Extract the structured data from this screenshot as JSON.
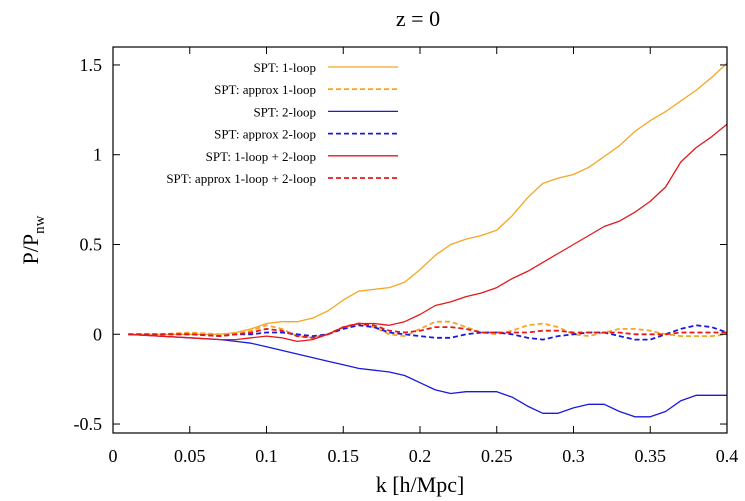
{
  "chart_data": {
    "type": "line",
    "title": "z = 0",
    "xlabel": "k [h/Mpc]",
    "ylabel_main": "P/P",
    "ylabel_sub": "nw",
    "xlim": [
      0,
      0.4
    ],
    "ylim": [
      -0.55,
      1.6
    ],
    "xticks": [
      0,
      0.05,
      0.1,
      0.15,
      0.2,
      0.25,
      0.3,
      0.35,
      0.4
    ],
    "xtick_labels": [
      "0",
      "0.05",
      "0.1",
      "0.15",
      "0.2",
      "0.25",
      "0.3",
      "0.35",
      "0.4"
    ],
    "yticks": [
      -0.5,
      0,
      0.5,
      1,
      1.5
    ],
    "ytick_labels": [
      "-0.5",
      "0",
      "0.5",
      "1",
      "1.5"
    ],
    "grid": false,
    "legend_position": "top-left",
    "series": [
      {
        "name": "SPT: 1-loop",
        "color": "#f5a623",
        "dash": "solid",
        "x": [
          0.01,
          0.03,
          0.05,
          0.07,
          0.08,
          0.09,
          0.1,
          0.11,
          0.12,
          0.13,
          0.14,
          0.15,
          0.16,
          0.17,
          0.18,
          0.19,
          0.2,
          0.21,
          0.22,
          0.23,
          0.24,
          0.25,
          0.26,
          0.27,
          0.28,
          0.29,
          0.3,
          0.31,
          0.32,
          0.33,
          0.34,
          0.35,
          0.36,
          0.37,
          0.38,
          0.39,
          0.4
        ],
        "y": [
          0.0,
          0.0,
          0.0,
          0.0,
          0.01,
          0.03,
          0.06,
          0.07,
          0.07,
          0.09,
          0.13,
          0.19,
          0.24,
          0.25,
          0.26,
          0.29,
          0.36,
          0.44,
          0.5,
          0.53,
          0.55,
          0.58,
          0.66,
          0.76,
          0.84,
          0.87,
          0.89,
          0.93,
          0.99,
          1.05,
          1.13,
          1.19,
          1.24,
          1.3,
          1.36,
          1.43,
          1.51
        ]
      },
      {
        "name": "SPT: approx 1-loop",
        "color": "#f5a623",
        "dash": "dashed",
        "x": [
          0.01,
          0.03,
          0.05,
          0.07,
          0.08,
          0.09,
          0.1,
          0.11,
          0.12,
          0.13,
          0.14,
          0.15,
          0.16,
          0.17,
          0.18,
          0.19,
          0.2,
          0.21,
          0.22,
          0.23,
          0.24,
          0.25,
          0.26,
          0.27,
          0.28,
          0.29,
          0.3,
          0.31,
          0.32,
          0.33,
          0.34,
          0.35,
          0.36,
          0.37,
          0.38,
          0.39,
          0.4
        ],
        "y": [
          0.0,
          0.0,
          0.01,
          0.0,
          0.0,
          0.02,
          0.05,
          0.03,
          -0.01,
          -0.02,
          0.0,
          0.04,
          0.06,
          0.04,
          0.0,
          -0.01,
          0.03,
          0.07,
          0.07,
          0.04,
          0.01,
          0.0,
          0.02,
          0.05,
          0.06,
          0.04,
          0.0,
          -0.01,
          0.01,
          0.03,
          0.03,
          0.02,
          0.0,
          -0.01,
          -0.01,
          -0.01,
          0.0
        ]
      },
      {
        "name": "SPT: 2-loop",
        "color": "#1a1adc",
        "dash": "solid",
        "x": [
          0.01,
          0.03,
          0.05,
          0.07,
          0.08,
          0.09,
          0.1,
          0.11,
          0.12,
          0.13,
          0.14,
          0.15,
          0.16,
          0.17,
          0.18,
          0.19,
          0.2,
          0.21,
          0.22,
          0.23,
          0.24,
          0.25,
          0.26,
          0.27,
          0.28,
          0.29,
          0.3,
          0.31,
          0.32,
          0.33,
          0.34,
          0.35,
          0.36,
          0.37,
          0.38,
          0.39,
          0.4
        ],
        "y": [
          0.0,
          -0.01,
          -0.02,
          -0.03,
          -0.04,
          -0.05,
          -0.07,
          -0.09,
          -0.11,
          -0.13,
          -0.15,
          -0.17,
          -0.19,
          -0.2,
          -0.21,
          -0.23,
          -0.27,
          -0.31,
          -0.33,
          -0.32,
          -0.32,
          -0.32,
          -0.35,
          -0.4,
          -0.44,
          -0.44,
          -0.41,
          -0.39,
          -0.39,
          -0.43,
          -0.46,
          -0.46,
          -0.43,
          -0.37,
          -0.34,
          -0.34,
          -0.34
        ]
      },
      {
        "name": "SPT: approx 2-loop",
        "color": "#1a1adc",
        "dash": "dashed",
        "x": [
          0.01,
          0.03,
          0.05,
          0.07,
          0.08,
          0.09,
          0.1,
          0.11,
          0.12,
          0.13,
          0.14,
          0.15,
          0.16,
          0.17,
          0.18,
          0.19,
          0.2,
          0.21,
          0.22,
          0.23,
          0.24,
          0.25,
          0.26,
          0.27,
          0.28,
          0.29,
          0.3,
          0.31,
          0.32,
          0.33,
          0.34,
          0.35,
          0.36,
          0.37,
          0.38,
          0.39,
          0.4
        ],
        "y": [
          0.0,
          0.0,
          0.0,
          -0.01,
          0.0,
          0.0,
          0.01,
          0.01,
          0.0,
          -0.01,
          0.0,
          0.03,
          0.05,
          0.04,
          0.01,
          0.0,
          -0.01,
          -0.02,
          -0.02,
          0.0,
          0.01,
          0.01,
          0.0,
          -0.02,
          -0.03,
          -0.01,
          0.0,
          0.01,
          0.01,
          -0.01,
          -0.03,
          -0.03,
          0.0,
          0.03,
          0.05,
          0.04,
          0.01
        ]
      },
      {
        "name": "SPT: 1-loop + 2-loop",
        "color": "#e3191c",
        "dash": "solid",
        "x": [
          0.01,
          0.03,
          0.05,
          0.07,
          0.08,
          0.09,
          0.1,
          0.11,
          0.12,
          0.13,
          0.14,
          0.15,
          0.16,
          0.17,
          0.18,
          0.19,
          0.2,
          0.21,
          0.22,
          0.23,
          0.24,
          0.25,
          0.26,
          0.27,
          0.28,
          0.29,
          0.3,
          0.31,
          0.32,
          0.33,
          0.34,
          0.35,
          0.36,
          0.37,
          0.38,
          0.39,
          0.4
        ],
        "y": [
          0.0,
          -0.01,
          -0.02,
          -0.03,
          -0.03,
          -0.02,
          -0.01,
          -0.02,
          -0.04,
          -0.03,
          0.0,
          0.04,
          0.06,
          0.06,
          0.05,
          0.07,
          0.11,
          0.16,
          0.18,
          0.21,
          0.23,
          0.26,
          0.31,
          0.35,
          0.4,
          0.45,
          0.5,
          0.55,
          0.6,
          0.63,
          0.68,
          0.74,
          0.82,
          0.96,
          1.04,
          1.1,
          1.17
        ]
      },
      {
        "name": "SPT: approx 1-loop + 2-loop",
        "color": "#e3191c",
        "dash": "dashed",
        "x": [
          0.01,
          0.03,
          0.05,
          0.07,
          0.08,
          0.09,
          0.1,
          0.11,
          0.12,
          0.13,
          0.14,
          0.15,
          0.16,
          0.17,
          0.18,
          0.19,
          0.2,
          0.21,
          0.22,
          0.23,
          0.24,
          0.25,
          0.26,
          0.27,
          0.28,
          0.29,
          0.3,
          0.31,
          0.32,
          0.33,
          0.34,
          0.35,
          0.36,
          0.37,
          0.38,
          0.39,
          0.4
        ],
        "y": [
          0.0,
          0.0,
          0.0,
          -0.01,
          0.0,
          0.01,
          0.03,
          0.02,
          -0.01,
          -0.02,
          0.0,
          0.04,
          0.06,
          0.05,
          0.02,
          0.01,
          0.02,
          0.04,
          0.04,
          0.03,
          0.01,
          0.01,
          0.01,
          0.01,
          0.02,
          0.02,
          0.01,
          0.01,
          0.01,
          0.01,
          0.0,
          0.0,
          0.0,
          0.01,
          0.01,
          0.01,
          0.01
        ]
      }
    ]
  }
}
